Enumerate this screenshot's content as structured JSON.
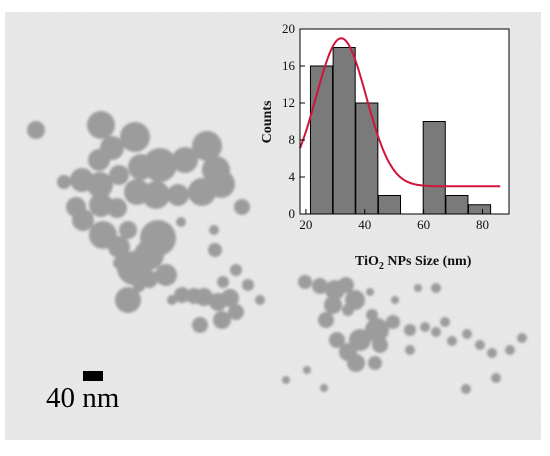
{
  "image": {
    "description_free": true,
    "background_color": "#e9e9e9",
    "particle_color": "#9c9c9c"
  },
  "scale_bar": {
    "label": "40 nm"
  },
  "inset_histogram": {
    "x_label_prefix": "TiO",
    "x_label_subscript": "2",
    "x_label_suffix": " NPs Size (nm)",
    "y_label": "Counts"
  },
  "chart_data": {
    "type": "bar",
    "xlabel": "TiO2 NPs Size (nm)",
    "ylabel": "Counts",
    "xlim": [
      18,
      89
    ],
    "ylim": [
      0,
      20
    ],
    "x_ticks": [
      20,
      40,
      60,
      80
    ],
    "y_ticks": [
      0,
      4,
      8,
      12,
      16,
      20
    ],
    "bin_width": 7.5,
    "bins": [
      {
        "center": 25.3,
        "count": 16
      },
      {
        "center": 33.0,
        "count": 18
      },
      {
        "center": 40.7,
        "count": 12
      },
      {
        "center": 48.4,
        "count": 2
      },
      {
        "center": 55.6,
        "count": 0
      },
      {
        "center": 63.6,
        "count": 10
      },
      {
        "center": 71.3,
        "count": 2
      },
      {
        "center": 79.0,
        "count": 1
      }
    ],
    "fit": {
      "type": "gaussian",
      "color": "#d0143c",
      "baseline": 3,
      "amplitude": 16,
      "center": 32,
      "sigma": 8.5,
      "x_range": [
        18,
        86
      ]
    },
    "bar_color": "#7a7a7a"
  }
}
